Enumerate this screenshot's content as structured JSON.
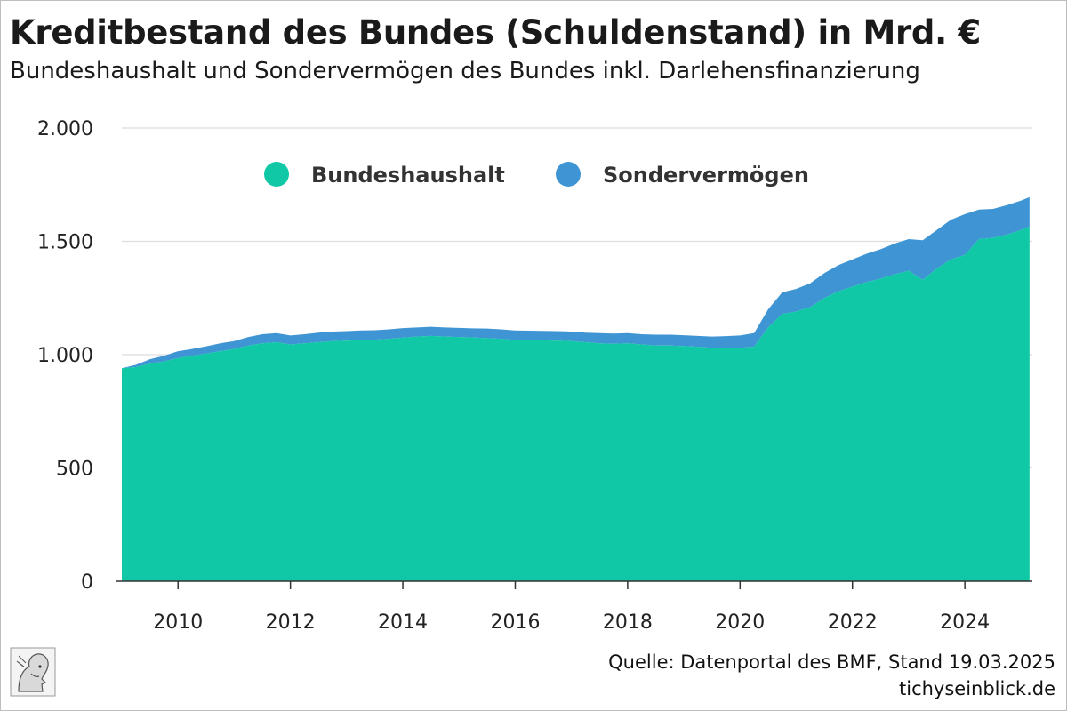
{
  "chart_data": {
    "type": "area",
    "stacked": true,
    "title": "Kreditbestand des Bundes (Schuldenstand) in Mrd. €",
    "subtitle": "Bundeshaushalt und Sondervermögen des Bundes inkl. Darlehensfinanzierung",
    "xlabel": "",
    "ylabel": "",
    "xlim": [
      2009.0,
      2025.2
    ],
    "ylim": [
      0,
      2000
    ],
    "x_ticks": [
      2010,
      2012,
      2014,
      2016,
      2018,
      2020,
      2022,
      2024
    ],
    "x_tick_labels": [
      "2010",
      "2012",
      "2014",
      "2016",
      "2018",
      "2020",
      "2022",
      "2024"
    ],
    "y_ticks": [
      0,
      500,
      1000,
      1500,
      2000
    ],
    "y_tick_labels": [
      "0",
      "500",
      "1.000",
      "1.500",
      "2.000"
    ],
    "grid": "horizontal",
    "legend_position": "top-center",
    "x": [
      2009.0,
      2009.25,
      2009.5,
      2009.75,
      2010.0,
      2010.25,
      2010.5,
      2010.75,
      2011.0,
      2011.25,
      2011.5,
      2011.75,
      2012.0,
      2012.25,
      2012.5,
      2012.75,
      2013.0,
      2013.25,
      2013.5,
      2013.75,
      2014.0,
      2014.25,
      2014.5,
      2014.75,
      2015.0,
      2015.25,
      2015.5,
      2015.75,
      2016.0,
      2016.25,
      2016.5,
      2016.75,
      2017.0,
      2017.25,
      2017.5,
      2017.75,
      2018.0,
      2018.25,
      2018.5,
      2018.75,
      2019.0,
      2019.25,
      2019.5,
      2019.75,
      2020.0,
      2020.25,
      2020.5,
      2020.75,
      2021.0,
      2021.25,
      2021.5,
      2021.75,
      2022.0,
      2022.25,
      2022.5,
      2022.75,
      2023.0,
      2023.25,
      2023.5,
      2023.75,
      2024.0,
      2024.25,
      2024.5,
      2024.75,
      2025.0,
      2025.15
    ],
    "series": [
      {
        "name": "Bundeshaushalt",
        "color": "#10c8a6",
        "values": [
          940,
          945,
          960,
          970,
          985,
          995,
          1005,
          1015,
          1025,
          1040,
          1050,
          1055,
          1045,
          1050,
          1055,
          1060,
          1062,
          1065,
          1066,
          1070,
          1075,
          1080,
          1083,
          1080,
          1078,
          1076,
          1073,
          1070,
          1065,
          1064,
          1063,
          1062,
          1060,
          1055,
          1050,
          1048,
          1050,
          1045,
          1040,
          1040,
          1038,
          1035,
          1030,
          1030,
          1030,
          1035,
          1120,
          1180,
          1190,
          1210,
          1250,
          1280,
          1300,
          1320,
          1335,
          1355,
          1370,
          1330,
          1380,
          1420,
          1440,
          1510,
          1515,
          1530,
          1550,
          1565
        ]
      },
      {
        "name": "Sondervermögen",
        "color": "#3f95d4",
        "values": [
          5,
          10,
          20,
          25,
          30,
          30,
          32,
          35,
          35,
          38,
          40,
          40,
          40,
          40,
          42,
          42,
          42,
          42,
          42,
          42,
          42,
          40,
          40,
          40,
          40,
          40,
          42,
          42,
          42,
          42,
          42,
          42,
          42,
          42,
          45,
          45,
          45,
          45,
          48,
          48,
          48,
          48,
          50,
          52,
          55,
          60,
          80,
          95,
          100,
          105,
          110,
          115,
          120,
          125,
          130,
          135,
          140,
          175,
          170,
          175,
          180,
          130,
          128,
          130,
          130,
          130
        ]
      }
    ]
  },
  "footer": {
    "source": "Quelle: Datenportal des BMF, Stand 19.03.2025",
    "site": "tichyseinblick.de",
    "logo_icon": "hermes-head-logo-icon"
  }
}
